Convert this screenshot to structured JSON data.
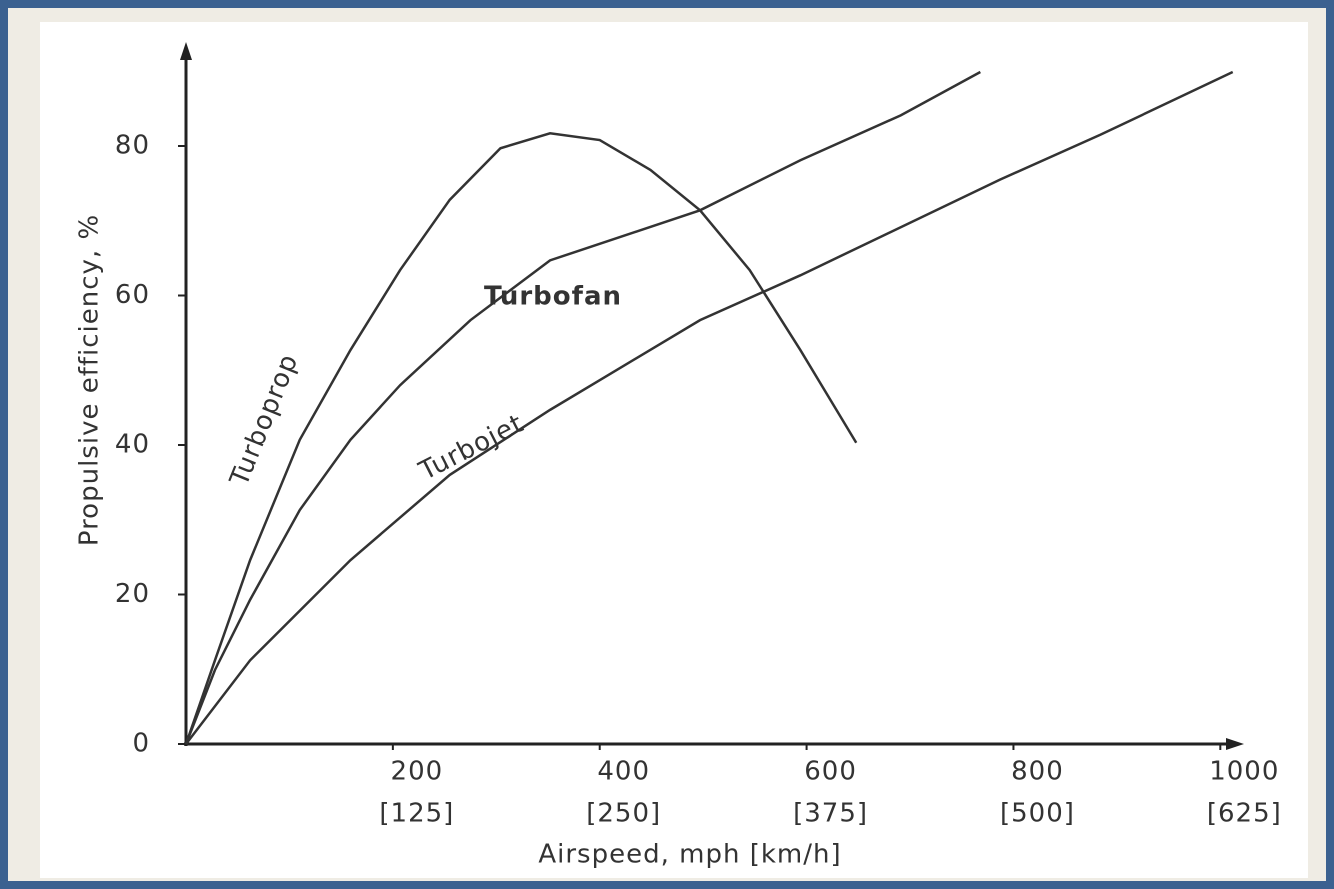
{
  "chart_data": {
    "type": "line",
    "y_label": "Propulsive efficiency, %",
    "x_label": "Airspeed, mph [km/h]",
    "xlim": [
      0,
      1020
    ],
    "ylim": [
      0,
      93
    ],
    "xticks": [
      200,
      400,
      600,
      800,
      1000
    ],
    "x2lim": [
      0,
      637.5
    ],
    "x2ticks": [
      {
        "value": 125,
        "label": "[125]"
      },
      {
        "value": 250,
        "label": "[250]"
      },
      {
        "value": 375,
        "label": "[375]"
      },
      {
        "value": 500,
        "label": "[500]"
      },
      {
        "value": 625,
        "label": "[625]"
      }
    ],
    "yticks": [
      0,
      20,
      40,
      60,
      80
    ],
    "series": [
      {
        "name": "Turboprop",
        "color": "#333333",
        "x": [
          0,
          28,
          62,
          110,
          159,
          207,
          255,
          304,
          352,
          400,
          449,
          497,
          545,
          594,
          648
        ],
        "values": [
          0,
          11.2,
          24.6,
          40.7,
          52.7,
          63.4,
          72.8,
          79.7,
          81.7,
          80.8,
          76.8,
          71.4,
          63.4,
          52.7,
          40.3
        ]
      },
      {
        "name": "Turbofan",
        "color": "#333333",
        "x": [
          0,
          28,
          62,
          110,
          159,
          207,
          275,
          352,
          497,
          594,
          691,
          768
        ],
        "values": [
          0,
          9.9,
          19.3,
          31.3,
          40.7,
          48,
          56.7,
          64.7,
          71.4,
          78.1,
          84.1,
          89.9
        ]
      },
      {
        "name": "Turbojet",
        "color": "#333333",
        "x": [
          0,
          62,
          159,
          255,
          352,
          497,
          594,
          787,
          884,
          1012
        ],
        "values": [
          0,
          11.2,
          24.6,
          36,
          44.7,
          56.7,
          62.7,
          75.5,
          81.5,
          89.9
        ]
      }
    ]
  }
}
